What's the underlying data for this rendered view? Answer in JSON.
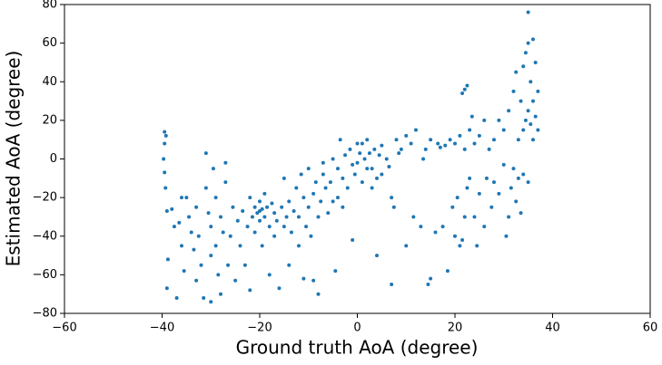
{
  "chart_data": {
    "type": "scatter",
    "x_label": "Ground truth AoA (degree)",
    "y_label": "Estimated AoA (degree)",
    "xlim": [
      -60,
      60
    ],
    "ylim": [
      -80,
      80
    ],
    "xticks": [
      {
        "value": -60,
        "label": "−60"
      },
      {
        "value": -40,
        "label": "−40"
      },
      {
        "value": -20,
        "label": "−20"
      },
      0,
      20,
      40,
      60
    ],
    "yticks": [
      {
        "value": -80,
        "label": "−80"
      },
      {
        "value": -60,
        "label": "−60"
      },
      {
        "value": -40,
        "label": "−40"
      },
      {
        "value": -20,
        "label": "−20"
      },
      0,
      20,
      40,
      60,
      80
    ],
    "color": "#1f77b4",
    "x": [
      -39.5,
      -39.2,
      -39.5,
      -39.7,
      -39.5,
      -39.3,
      -39,
      -38.8,
      -39,
      -38,
      -37.5,
      -37,
      -36,
      -36.5,
      -36,
      -35.5,
      -35,
      -34.5,
      -34,
      -33.5,
      -33,
      -33,
      -32.5,
      -32,
      -31.5,
      -31,
      -31,
      -30.5,
      -30,
      -30,
      -30,
      -29.5,
      -29,
      -29,
      -28.5,
      -28,
      -28,
      -27.5,
      -27,
      -27,
      -26.5,
      -26,
      -25.5,
      -25,
      -24.5,
      -24,
      -23.5,
      -23,
      -22.5,
      -22,
      -22,
      -21.5,
      -21,
      -21,
      -20.5,
      -20,
      -20,
      -20,
      -19.5,
      -19.5,
      -19,
      -19,
      -18.5,
      -18,
      -18,
      -17.5,
      -17,
      -17,
      -16.5,
      -16,
      -15.5,
      -15,
      -15,
      -14.5,
      -14,
      -14,
      -13.5,
      -13,
      -12.5,
      -12,
      -12,
      -11.5,
      -11,
      -11,
      -10.5,
      -10,
      -10,
      -9.5,
      -9,
      -9,
      -8.5,
      -8,
      -8,
      -7.5,
      -7,
      -7,
      -6.5,
      -6,
      -5.5,
      -5,
      -5,
      -4.5,
      -4,
      -4,
      -3.5,
      -3,
      -3,
      -2.5,
      -2,
      -1.5,
      -1,
      -1,
      -0.5,
      0,
      0,
      0.5,
      1,
      1,
      1.5,
      2,
      2,
      2.5,
      3,
      3,
      3.5,
      4,
      4,
      4.5,
      5,
      5,
      6,
      6.5,
      7,
      7,
      7.5,
      8,
      8.5,
      9,
      10,
      10,
      11,
      11.5,
      12,
      13,
      13.5,
      14,
      14.5,
      15,
      15,
      16,
      16.5,
      17,
      17.5,
      18,
      18.5,
      19,
      19.5,
      20,
      20,
      20.5,
      21,
      21,
      21.5,
      21.5,
      22,
      22,
      22,
      22.5,
      22.5,
      23,
      23,
      23.5,
      24,
      24,
      24.5,
      25,
      25,
      26,
      26,
      26.5,
      27,
      27.5,
      28,
      28,
      29,
      29,
      30,
      30,
      30.5,
      31,
      31,
      31.5,
      32,
      32,
      32.5,
      32.5,
      33,
      33,
      33.5,
      33.5,
      34,
      34,
      34,
      34.5,
      34.5,
      35,
      35,
      35,
      35,
      35.5,
      35.5,
      36,
      36,
      36,
      36.5,
      36.5,
      37,
      37
    ],
    "values": [
      14,
      12,
      8,
      0,
      -7,
      -15,
      -27,
      -52,
      -67,
      -26,
      -35,
      -72,
      -20,
      -33,
      -45,
      -58,
      -20,
      -30,
      -38,
      -47,
      -63,
      -25,
      -40,
      -55,
      -72,
      3,
      -15,
      -28,
      -35,
      -50,
      -74,
      -5,
      -20,
      -45,
      -60,
      -30,
      -70,
      -38,
      -2,
      -12,
      -55,
      -40,
      -25,
      -63,
      -32,
      -45,
      -27,
      -55,
      -35,
      -20,
      -68,
      -30,
      -25,
      -38,
      -28,
      -22,
      -27,
      -32,
      -26,
      -45,
      -18,
      -30,
      -25,
      -35,
      -60,
      -23,
      -28,
      -40,
      -32,
      -67,
      -25,
      -10,
      -35,
      -30,
      -22,
      -55,
      -38,
      -27,
      -15,
      -30,
      -45,
      -8,
      -20,
      -62,
      -35,
      -25,
      -5,
      -40,
      -18,
      -63,
      -12,
      -70,
      -30,
      -22,
      -2,
      -8,
      -15,
      -28,
      -12,
      0,
      -22,
      -58,
      -5,
      -20,
      10,
      -10,
      -25,
      2,
      -15,
      5,
      -3,
      -42,
      -8,
      8,
      -2,
      3,
      -12,
      8,
      0,
      -5,
      10,
      3,
      -15,
      -5,
      5,
      -10,
      -50,
      2,
      7,
      -8,
      0,
      -4,
      -65,
      -20,
      -25,
      10,
      3,
      5,
      -45,
      12,
      8,
      -30,
      15,
      -35,
      0,
      5,
      -65,
      10,
      -62,
      -38,
      8,
      6,
      -35,
      7,
      -58,
      10,
      -25,
      8,
      -40,
      -20,
      -45,
      12,
      34,
      -42,
      36,
      5,
      -30,
      38,
      -15,
      15,
      -10,
      22,
      -30,
      8,
      -45,
      -18,
      12,
      20,
      -35,
      -10,
      5,
      -25,
      10,
      -12,
      -18,
      20,
      15,
      -3,
      -40,
      25,
      -30,
      -15,
      35,
      -5,
      45,
      -22,
      10,
      -10,
      30,
      -28,
      48,
      15,
      -8,
      55,
      20,
      76,
      60,
      25,
      -12,
      40,
      18,
      62,
      30,
      10,
      50,
      22,
      15,
      35
    ]
  }
}
